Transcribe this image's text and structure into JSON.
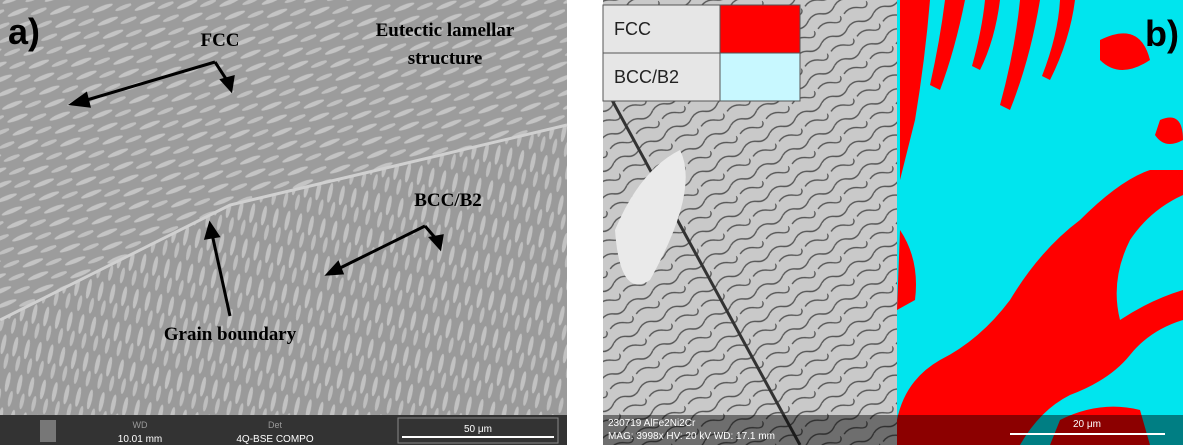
{
  "panel_a": {
    "label": "a)",
    "annotations": {
      "fcc": "FCC",
      "eutectic_line1": "Eutectic lamellar",
      "eutectic_line2": "structure",
      "bcc": "BCC/B2",
      "grain_boundary": "Grain boundary"
    },
    "info_bar": {
      "wd_title": "WD",
      "wd_value": "10.01 mm",
      "det_title": "Det",
      "det_value": "4Q-BSE COMPO",
      "scale": "50 μm"
    }
  },
  "panel_b": {
    "label": "b)",
    "legend": [
      {
        "name": "FCC",
        "color": "#ff0000"
      },
      {
        "name": "BCC/B2",
        "color": "#c8f8ff"
      }
    ],
    "info_bar": {
      "sample": "230719 AlFe2Ni2Cr",
      "conditions": "MAG: 3998x   HV: 20 kV   WD: 17.1 mm",
      "scale": "20 μm"
    }
  }
}
